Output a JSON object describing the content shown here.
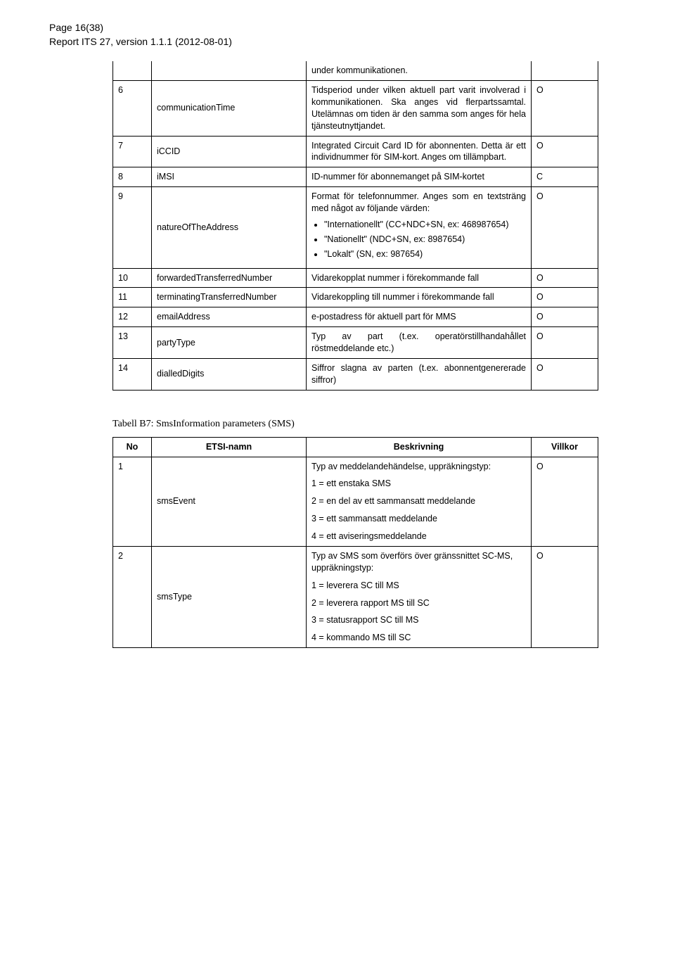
{
  "header": {
    "page_label": "Page 16(38)",
    "report_label": "Report ITS 27, version 1.1.1 (2012-08-01)"
  },
  "table1": {
    "pre_cell": "under kommunikationen.",
    "rows": [
      {
        "no": "6",
        "name": "communicationTime",
        "desc": "Tidsperiod under vilken aktuell part varit involverad i kommunikationen. Ska anges vid flerpartssamtal. Utelämnas om tiden är den samma som anges för hela tjänsteutnyttjandet.",
        "cond": "O"
      },
      {
        "no": "7",
        "name": "iCCID",
        "desc": "Integrated Circuit Card ID för abonnenten. Detta är ett individnummer för SIM-kort. Anges om tillämpbart.",
        "cond": "O"
      },
      {
        "no": "8",
        "name": "iMSI",
        "desc": "ID-nummer för abonnemanget på SIM-kortet",
        "cond": "C"
      },
      {
        "no": "9",
        "name": "natureOfTheAddress",
        "desc_intro": "Format för telefonnummer. Anges som en textsträng med något av följande värden:",
        "bullets": [
          "\"Internationellt\" (CC+NDC+SN, ex: 468987654)",
          "\"Nationellt\" (NDC+SN, ex: 8987654)",
          "\"Lokalt\" (SN, ex: 987654)"
        ],
        "cond": "O"
      },
      {
        "no": "10",
        "name": "forwardedTransferredNumber",
        "desc": "Vidarekopplat nummer i förekommande fall",
        "cond": "O"
      },
      {
        "no": "11",
        "name": "terminatingTransferredNumber",
        "desc": "Vidarekoppling till nummer i förekommande fall",
        "cond": "O"
      },
      {
        "no": "12",
        "name": "emailAddress",
        "desc": "e-postadress för aktuell part för MMS",
        "cond": "O"
      },
      {
        "no": "13",
        "name": "partyType",
        "desc": "Typ av part (t.ex. operatörstillhandahållet röstmeddelande etc.)",
        "cond": "O"
      },
      {
        "no": "14",
        "name": "dialledDigits",
        "desc": "Siffror slagna av parten (t.ex. abonnentgenererade siffror)",
        "cond": "O"
      }
    ]
  },
  "table2": {
    "caption": "Tabell B7: SmsInformation parameters (SMS)",
    "headers": {
      "no": "No",
      "name": "ETSI-namn",
      "desc": "Beskrivning",
      "cond": "Villkor"
    },
    "rows": [
      {
        "no": "1",
        "name": "smsEvent",
        "desc_intro": "Typ av meddelandehändelse, uppräkningstyp:",
        "lines": [
          "1 = ett enstaka SMS",
          "2 = en del av ett sammansatt meddelande",
          "3 = ett sammansatt meddelande",
          "4 = ett aviseringsmeddelande"
        ],
        "cond": "O"
      },
      {
        "no": "2",
        "name": "smsType",
        "desc_intro": "Typ av SMS som överförs över gränssnittet SC-MS, uppräkningstyp:",
        "lines": [
          "1 = leverera SC till MS",
          "2 = leverera rapport MS till SC",
          "3 = statusrapport SC till MS",
          "4 = kommando MS till SC"
        ],
        "cond": "O"
      }
    ]
  }
}
